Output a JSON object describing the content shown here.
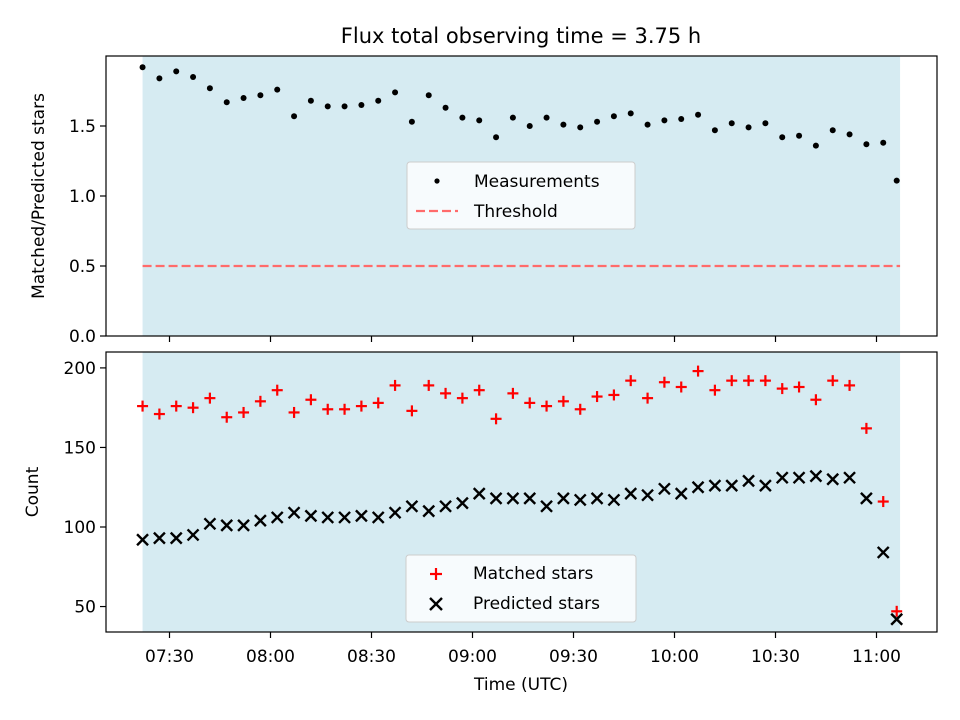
{
  "chart_data": {
    "type": "scatter",
    "title": "Flux total observing time = 3.75 h",
    "xlabel": "Time (UTC)",
    "x_ticks": [
      "07:30",
      "08:00",
      "08:30",
      "09:00",
      "09:30",
      "10:00",
      "10:30",
      "11:00"
    ],
    "observing_window": [
      "07:22",
      "11:07"
    ],
    "colors": {
      "window": "#add8e6",
      "measurements": "#000000",
      "threshold": "#ff6b6b",
      "matched": "#ff0000",
      "predicted": "#000000"
    },
    "top": {
      "ylabel": "Matched/Predicted stars",
      "ylim": [
        0,
        2.0
      ],
      "y_ticks": [
        "0.0",
        "0.5",
        "1.0",
        "1.5"
      ],
      "threshold": 0.5,
      "legend": [
        "Measurements",
        "Threshold"
      ],
      "legend_loc": "center",
      "series": [
        {
          "name": "Measurements",
          "marker": "dot",
          "points": [
            [
              "07:22",
              1.92
            ],
            [
              "07:27",
              1.84
            ],
            [
              "07:32",
              1.89
            ],
            [
              "07:37",
              1.85
            ],
            [
              "07:42",
              1.77
            ],
            [
              "07:47",
              1.67
            ],
            [
              "07:52",
              1.7
            ],
            [
              "07:57",
              1.72
            ],
            [
              "08:02",
              1.76
            ],
            [
              "08:07",
              1.57
            ],
            [
              "08:12",
              1.68
            ],
            [
              "08:17",
              1.64
            ],
            [
              "08:22",
              1.64
            ],
            [
              "08:27",
              1.65
            ],
            [
              "08:32",
              1.68
            ],
            [
              "08:37",
              1.74
            ],
            [
              "08:42",
              1.53
            ],
            [
              "08:47",
              1.72
            ],
            [
              "08:52",
              1.63
            ],
            [
              "08:57",
              1.56
            ],
            [
              "09:02",
              1.54
            ],
            [
              "09:07",
              1.42
            ],
            [
              "09:12",
              1.56
            ],
            [
              "09:17",
              1.5
            ],
            [
              "09:22",
              1.56
            ],
            [
              "09:27",
              1.51
            ],
            [
              "09:32",
              1.49
            ],
            [
              "09:37",
              1.53
            ],
            [
              "09:42",
              1.57
            ],
            [
              "09:47",
              1.59
            ],
            [
              "09:52",
              1.51
            ],
            [
              "09:57",
              1.54
            ],
            [
              "10:02",
              1.55
            ],
            [
              "10:07",
              1.58
            ],
            [
              "10:12",
              1.47
            ],
            [
              "10:17",
              1.52
            ],
            [
              "10:22",
              1.49
            ],
            [
              "10:27",
              1.52
            ],
            [
              "10:32",
              1.42
            ],
            [
              "10:37",
              1.43
            ],
            [
              "10:42",
              1.36
            ],
            [
              "10:47",
              1.47
            ],
            [
              "10:52",
              1.44
            ],
            [
              "10:57",
              1.37
            ],
            [
              "11:02",
              1.38
            ],
            [
              "11:06",
              1.11
            ]
          ]
        }
      ]
    },
    "bottom": {
      "ylabel": "Count",
      "ylim": [
        34,
        210
      ],
      "y_ticks": [
        "50",
        "100",
        "150",
        "200"
      ],
      "legend": [
        "Matched stars",
        "Predicted stars"
      ],
      "legend_loc": "lower center",
      "series": [
        {
          "name": "Matched stars",
          "marker": "plus",
          "points": [
            [
              "07:22",
              176
            ],
            [
              "07:27",
              171
            ],
            [
              "07:32",
              176
            ],
            [
              "07:37",
              175
            ],
            [
              "07:42",
              181
            ],
            [
              "07:47",
              169
            ],
            [
              "07:52",
              172
            ],
            [
              "07:57",
              179
            ],
            [
              "08:02",
              186
            ],
            [
              "08:07",
              172
            ],
            [
              "08:12",
              180
            ],
            [
              "08:17",
              174
            ],
            [
              "08:22",
              174
            ],
            [
              "08:27",
              176
            ],
            [
              "08:32",
              178
            ],
            [
              "08:37",
              189
            ],
            [
              "08:42",
              173
            ],
            [
              "08:47",
              189
            ],
            [
              "08:52",
              184
            ],
            [
              "08:57",
              181
            ],
            [
              "09:02",
              186
            ],
            [
              "09:07",
              168
            ],
            [
              "09:12",
              184
            ],
            [
              "09:17",
              178
            ],
            [
              "09:22",
              176
            ],
            [
              "09:27",
              179
            ],
            [
              "09:32",
              174
            ],
            [
              "09:37",
              182
            ],
            [
              "09:42",
              183
            ],
            [
              "09:47",
              192
            ],
            [
              "09:52",
              181
            ],
            [
              "09:57",
              191
            ],
            [
              "10:02",
              188
            ],
            [
              "10:07",
              198
            ],
            [
              "10:12",
              186
            ],
            [
              "10:17",
              192
            ],
            [
              "10:22",
              192
            ],
            [
              "10:27",
              192
            ],
            [
              "10:32",
              187
            ],
            [
              "10:37",
              188
            ],
            [
              "10:42",
              180
            ],
            [
              "10:47",
              192
            ],
            [
              "10:52",
              189
            ],
            [
              "10:57",
              162
            ],
            [
              "11:02",
              116
            ],
            [
              "11:06",
              47
            ]
          ]
        },
        {
          "name": "Predicted stars",
          "marker": "x",
          "points": [
            [
              "07:22",
              92
            ],
            [
              "07:27",
              93
            ],
            [
              "07:32",
              93
            ],
            [
              "07:37",
              95
            ],
            [
              "07:42",
              102
            ],
            [
              "07:47",
              101
            ],
            [
              "07:52",
              101
            ],
            [
              "07:57",
              104
            ],
            [
              "08:02",
              106
            ],
            [
              "08:07",
              109
            ],
            [
              "08:12",
              107
            ],
            [
              "08:17",
              106
            ],
            [
              "08:22",
              106
            ],
            [
              "08:27",
              107
            ],
            [
              "08:32",
              106
            ],
            [
              "08:37",
              109
            ],
            [
              "08:42",
              113
            ],
            [
              "08:47",
              110
            ],
            [
              "08:52",
              113
            ],
            [
              "08:57",
              115
            ],
            [
              "09:02",
              121
            ],
            [
              "09:07",
              118
            ],
            [
              "09:12",
              118
            ],
            [
              "09:17",
              118
            ],
            [
              "09:22",
              113
            ],
            [
              "09:27",
              118
            ],
            [
              "09:32",
              117
            ],
            [
              "09:37",
              118
            ],
            [
              "09:42",
              117
            ],
            [
              "09:47",
              121
            ],
            [
              "09:52",
              120
            ],
            [
              "09:57",
              124
            ],
            [
              "10:02",
              121
            ],
            [
              "10:07",
              125
            ],
            [
              "10:12",
              126
            ],
            [
              "10:17",
              126
            ],
            [
              "10:22",
              129
            ],
            [
              "10:27",
              126
            ],
            [
              "10:32",
              131
            ],
            [
              "10:37",
              131
            ],
            [
              "10:42",
              132
            ],
            [
              "10:47",
              130
            ],
            [
              "10:52",
              131
            ],
            [
              "10:57",
              118
            ],
            [
              "11:02",
              84
            ],
            [
              "11:06",
              42
            ]
          ]
        }
      ]
    }
  }
}
